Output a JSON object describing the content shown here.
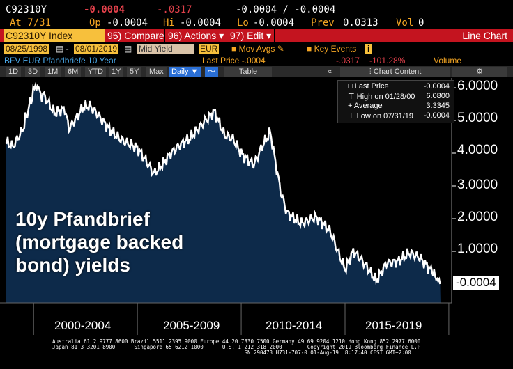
{
  "header": {
    "ticker": "C92310Y",
    "last": "-0.0004",
    "change": "-.0317",
    "bid_ask": "-0.0004 / -0.0004",
    "at": "At 7/31",
    "op_label": "Op",
    "op": "-0.0004",
    "hi_label": "Hi",
    "hi": "-0.0004",
    "lo_label": "Lo",
    "lo": "-0.0004",
    "prev_label": "Prev",
    "prev": "0.0313",
    "vol_label": "Vol",
    "vol": "0"
  },
  "toolbar": {
    "security": "C92310Y Index",
    "compare": "95) Compare",
    "actions": "96) Actions ▾",
    "edit": "97) Edit ▾",
    "chart_type": "Line Chart"
  },
  "controls": {
    "start_date": "08/25/1998",
    "end_date": "08/01/2019",
    "field": "Mid Yield",
    "currency": "EUR",
    "mov_avgs": "Mov Avgs",
    "key_events": "Key Events",
    "info": "i"
  },
  "info_line": {
    "name": "BFV EUR Pfandbriefe 10 Year",
    "last_price": "Last Price -.0004",
    "change": "-.0317",
    "pct": "-101.28%",
    "volume": "Volume"
  },
  "tabs": [
    "1D",
    "3D",
    "1M",
    "6M",
    "YTD",
    "1Y",
    "5Y",
    "Max",
    "Daily ▼",
    "Table"
  ],
  "chart_content": "Chart Content",
  "legend": [
    {
      "label": "Last Price",
      "value": "-0.0004"
    },
    {
      "label": "High on 01/28/00",
      "value": "6.0800"
    },
    {
      "label": "Average",
      "value": "3.3345"
    },
    {
      "label": "Low on 07/31/19",
      "value": "-0.0004"
    }
  ],
  "overlay_text": [
    "10y Pfandbrief",
    "(mortgage backed",
    "bond) yields"
  ],
  "footer": [
    "Australia 61 2 9777 8600 Brazil 5511 2395 9000 Europe 44 20 7330 7500 Germany 49 69 9204 1210 Hong Kong 852 2977 6000",
    "Japan 81 3 3201 8900      Singapore 65 6212 1000      U.S. 1 212 318 2000        Copyright 2019 Bloomberg Finance L.P.",
    "                                                             SN 290473 H731-707-0 01-Aug-19  8:17:40 CEST GMT+2:00"
  ],
  "colors": {
    "fill": "#0d2a4a",
    "line": "#ffffff",
    "accent": "#c4141f"
  },
  "chart_data": {
    "type": "area",
    "title": "BFV EUR Pfandbriefe 10 Year",
    "ylim": [
      -0.3,
      6.4
    ],
    "xlim": [
      1998.65,
      2019.6
    ],
    "yticks": [
      "6.0000",
      "5.0000",
      "4.0000",
      "3.0000",
      "2.0000",
      "1.0000"
    ],
    "last_label": "-0.0004",
    "xgroups": [
      "2000-2004",
      "2005-2009",
      "2010-2014",
      "2015-2019"
    ],
    "x": [
      1998.65,
      1999.0,
      1999.5,
      2000.08,
      2000.5,
      2001.0,
      2001.5,
      2001.7,
      2002.4,
      2002.7,
      2003.6,
      2004.3,
      2005.0,
      2005.8,
      2006.6,
      2007.5,
      2008.2,
      2008.7,
      2009.2,
      2009.6,
      2010.0,
      2010.6,
      2011.0,
      2011.4,
      2011.7,
      2011.9,
      2012.2,
      2012.9,
      2013.6,
      2014.3,
      2015.0,
      2015.4,
      2015.9,
      2016.5,
      2017.0,
      2017.6,
      2018.1,
      2018.6,
      2019.1,
      2019.58
    ],
    "y": [
      4.3,
      4.2,
      4.8,
      6.08,
      5.7,
      5.2,
      5.4,
      4.8,
      5.4,
      5.4,
      4.8,
      4.4,
      4.1,
      3.4,
      4.0,
      4.4,
      5.0,
      5.3,
      4.5,
      4.4,
      4.0,
      3.7,
      4.2,
      4.6,
      3.5,
      2.8,
      2.2,
      1.9,
      2.0,
      1.6,
      0.5,
      1.0,
      0.6,
      0.1,
      0.7,
      0.7,
      0.9,
      0.8,
      0.5,
      -0.0004
    ]
  }
}
